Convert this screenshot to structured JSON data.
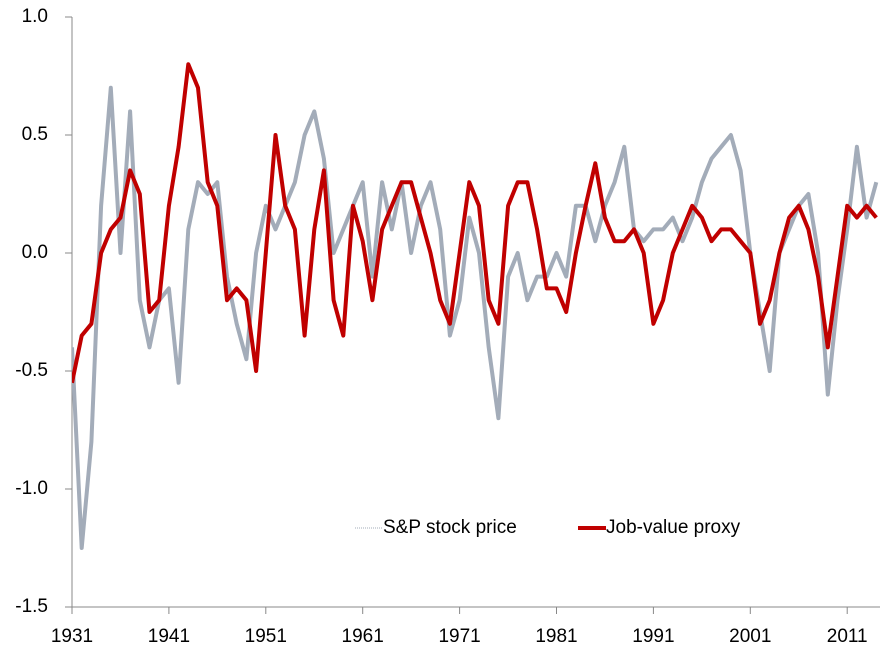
{
  "chart_data": {
    "type": "line",
    "x": [
      1931,
      1932,
      1933,
      1934,
      1935,
      1936,
      1937,
      1938,
      1939,
      1940,
      1941,
      1942,
      1943,
      1944,
      1945,
      1946,
      1947,
      1948,
      1949,
      1950,
      1951,
      1952,
      1953,
      1954,
      1955,
      1956,
      1957,
      1958,
      1959,
      1960,
      1961,
      1962,
      1963,
      1964,
      1965,
      1966,
      1967,
      1968,
      1969,
      1970,
      1971,
      1972,
      1973,
      1974,
      1975,
      1976,
      1977,
      1978,
      1979,
      1980,
      1981,
      1982,
      1983,
      1984,
      1985,
      1986,
      1987,
      1988,
      1989,
      1990,
      1991,
      1992,
      1993,
      1994,
      1995,
      1996,
      1997,
      1998,
      1999,
      2000,
      2001,
      2002,
      2003,
      2004,
      2005,
      2006,
      2007,
      2008,
      2009,
      2010,
      2011,
      2012,
      2013,
      2014
    ],
    "series": [
      {
        "name": "S&P stock price",
        "color": "#a3acb9",
        "values": [
          -0.4,
          -1.25,
          -0.8,
          0.2,
          0.7,
          0.0,
          0.6,
          -0.2,
          -0.4,
          -0.2,
          -0.15,
          -0.55,
          0.1,
          0.3,
          0.25,
          0.3,
          -0.1,
          -0.3,
          -0.45,
          0.0,
          0.2,
          0.1,
          0.2,
          0.3,
          0.5,
          0.6,
          0.4,
          0.0,
          0.1,
          0.2,
          0.3,
          -0.1,
          0.3,
          0.1,
          0.3,
          0.0,
          0.2,
          0.3,
          0.1,
          -0.35,
          -0.2,
          0.15,
          0.0,
          -0.4,
          -0.7,
          -0.1,
          0.0,
          -0.2,
          -0.1,
          -0.1,
          0.0,
          -0.1,
          0.2,
          0.2,
          0.05,
          0.2,
          0.3,
          0.45,
          0.1,
          0.05,
          0.1,
          0.1,
          0.15,
          0.05,
          0.15,
          0.3,
          0.4,
          0.45,
          0.5,
          0.35,
          0.0,
          -0.25,
          -0.5,
          0.0,
          0.1,
          0.2,
          0.25,
          0.0,
          -0.6,
          -0.2,
          0.1,
          0.45,
          0.15,
          0.3
        ]
      },
      {
        "name": "Job-value proxy",
        "color": "#c00000",
        "values": [
          -0.55,
          -0.35,
          -0.3,
          0.0,
          0.1,
          0.15,
          0.35,
          0.25,
          -0.25,
          -0.2,
          0.2,
          0.45,
          0.8,
          0.7,
          0.3,
          0.2,
          -0.2,
          -0.15,
          -0.2,
          -0.5,
          0.0,
          0.5,
          0.2,
          0.1,
          -0.35,
          0.1,
          0.35,
          -0.2,
          -0.35,
          0.2,
          0.05,
          -0.2,
          0.1,
          0.2,
          0.3,
          0.3,
          0.15,
          0.0,
          -0.2,
          -0.3,
          0.0,
          0.3,
          0.2,
          -0.2,
          -0.3,
          0.2,
          0.3,
          0.3,
          0.1,
          -0.15,
          -0.15,
          -0.25,
          0.0,
          0.2,
          0.38,
          0.15,
          0.05,
          0.05,
          0.1,
          0.0,
          -0.3,
          -0.2,
          0.0,
          0.1,
          0.2,
          0.15,
          0.05,
          0.1,
          0.1,
          0.05,
          0.0,
          -0.3,
          -0.2,
          0.0,
          0.15,
          0.2,
          0.1,
          -0.1,
          -0.4,
          -0.1,
          0.2,
          0.15,
          0.2,
          0.15
        ]
      }
    ],
    "xlim": [
      1931,
      2014.5
    ],
    "xticks": [
      1931,
      1941,
      1951,
      1961,
      1971,
      1981,
      1991,
      2001,
      2011
    ],
    "ylim": [
      -1.5,
      1
    ],
    "yticks": [
      -1.5,
      {
        "value": -1,
        "label": "-1.0"
      },
      -0.5,
      {
        "value": 0,
        "label": "0.0"
      },
      0.5,
      {
        "value": 1,
        "label": "1.0"
      }
    ]
  }
}
